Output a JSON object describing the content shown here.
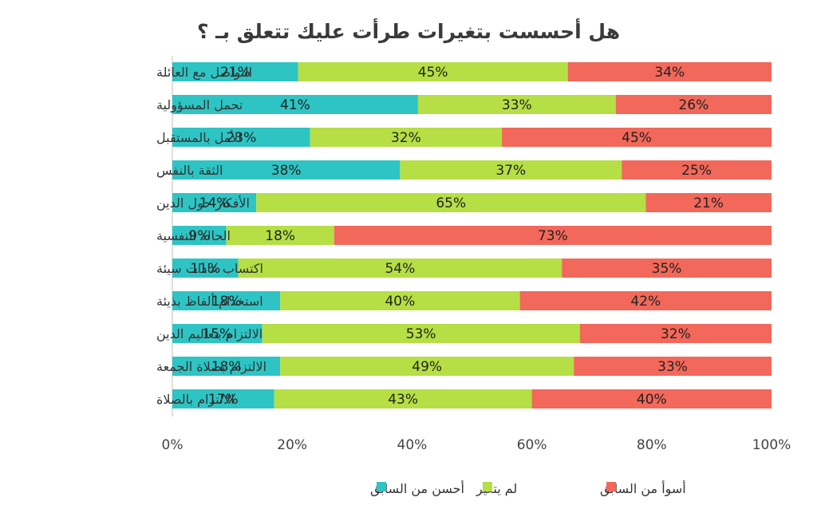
{
  "chart_data": {
    "type": "bar",
    "orientation": "horizontal",
    "stacked": true,
    "percent_stacked": true,
    "title": "هل أحسست بتغيرات طرأت عليك تتعلق بـ ؟",
    "categories": [
      "التواصل مع العائلة",
      "تحمل المسؤولية",
      "الأمل بالمستقبل",
      "الثقة بالنفس",
      "الأفكار حول الدين",
      "الحالة النفسية",
      "اكتساب عادات سيئة",
      "استخدام ألفاظ بذيئة",
      "الالتزام بتعاليم الدين",
      "الالتزام بصلاة الجمعة",
      "الالتزام بالصلاة"
    ],
    "series": [
      {
        "name": "أحسن من السابق",
        "color": "#2ec4c4",
        "values": [
          21,
          41,
          23,
          38,
          14,
          9,
          11,
          18,
          15,
          18,
          17
        ]
      },
      {
        "name": "لم يتغير",
        "color": "#b5df45",
        "values": [
          45,
          33,
          32,
          37,
          65,
          18,
          54,
          40,
          53,
          49,
          43
        ]
      },
      {
        "name": "أسوأ من السابق",
        "color": "#f2685a",
        "values": [
          34,
          26,
          45,
          25,
          21,
          73,
          35,
          42,
          32,
          33,
          40
        ]
      }
    ],
    "value_labels": [
      [
        "21%",
        "45%",
        "34%"
      ],
      [
        "41%",
        "33%",
        "26%"
      ],
      [
        "23%",
        "32%",
        "45%"
      ],
      [
        "38%",
        "37%",
        "25%"
      ],
      [
        "14%",
        "65%",
        "21%"
      ],
      [
        "9%",
        "18%",
        "73%"
      ],
      [
        "11%",
        "54%",
        "35%"
      ],
      [
        "18%",
        "40%",
        "42%"
      ],
      [
        "15%",
        "53%",
        "32%"
      ],
      [
        "18%",
        "49%",
        "33%"
      ],
      [
        "17%",
        "43%",
        "40%"
      ]
    ],
    "xlim": [
      0,
      100
    ],
    "x_ticks": [
      0,
      20,
      40,
      60,
      80,
      100
    ],
    "x_tick_labels": [
      "0%",
      "20%",
      "40%",
      "60%",
      "80%",
      "100%"
    ],
    "grid": false,
    "legend_position": "bottom"
  }
}
